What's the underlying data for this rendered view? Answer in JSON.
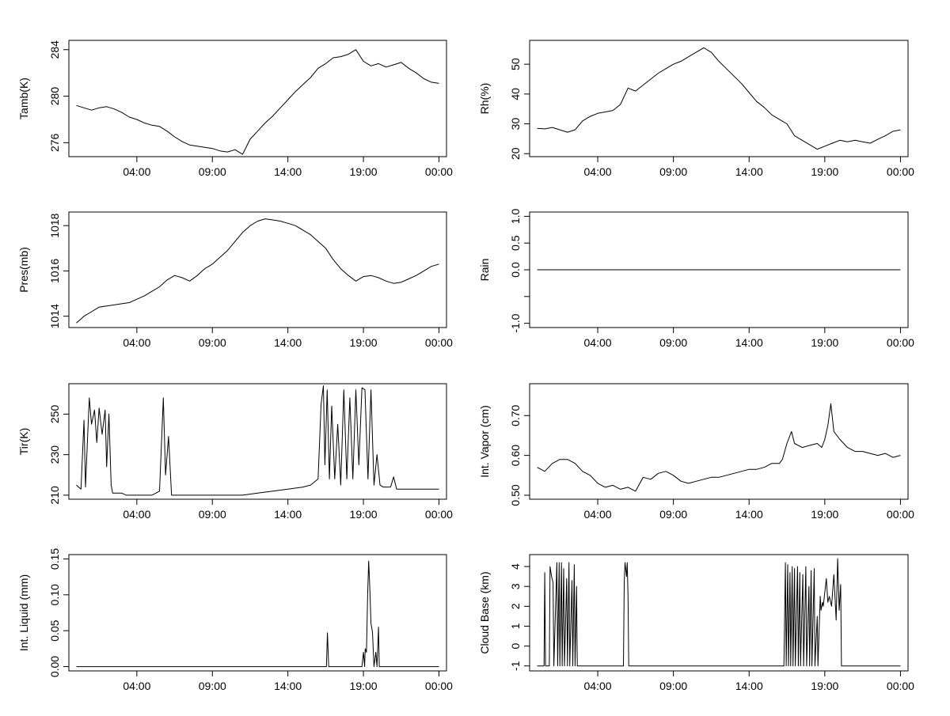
{
  "chart_data": [
    {
      "type": "line",
      "ylabel": "Tamb(K)",
      "xticks": [
        "04:00",
        "09:00",
        "14:00",
        "19:00",
        "00:00"
      ],
      "xlim": [
        -0.5,
        24.5
      ],
      "ylim": [
        274.8,
        284.8
      ],
      "yticks": [
        276,
        280,
        284
      ],
      "x": [
        0,
        0.5,
        1,
        1.5,
        2,
        2.5,
        3,
        3.5,
        4,
        4.5,
        5,
        5.5,
        6,
        6.5,
        7,
        7.5,
        8,
        8.5,
        9,
        9.5,
        10,
        10.5,
        11,
        11.5,
        12,
        12.5,
        13,
        13.5,
        14,
        14.5,
        15,
        15.5,
        16,
        16.5,
        17,
        17.5,
        18,
        18.5,
        19,
        19.5,
        20,
        20.5,
        21,
        21.5,
        22,
        22.5,
        23,
        23.5,
        24
      ],
      "y": [
        279.2,
        279.0,
        278.8,
        279.0,
        279.1,
        278.9,
        278.6,
        278.2,
        278.0,
        277.7,
        277.5,
        277.4,
        277.0,
        276.5,
        276.1,
        275.8,
        275.7,
        275.6,
        275.5,
        275.3,
        275.2,
        275.4,
        275.0,
        276.3,
        277.0,
        277.7,
        278.3,
        279.0,
        279.7,
        280.4,
        281.0,
        281.6,
        282.4,
        282.8,
        283.3,
        283.4,
        283.6,
        284.0,
        283.0,
        282.6,
        282.8,
        282.5,
        282.7,
        282.9,
        282.4,
        282.0,
        281.5,
        281.2,
        281.1
      ]
    },
    {
      "type": "line",
      "ylabel": "Rh(%)",
      "xticks": [
        "04:00",
        "09:00",
        "14:00",
        "19:00",
        "00:00"
      ],
      "xlim": [
        -0.5,
        24.5
      ],
      "ylim": [
        19,
        58
      ],
      "yticks": [
        20,
        30,
        40,
        50
      ],
      "x": [
        0,
        0.5,
        1,
        1.5,
        2,
        2.5,
        3,
        3.5,
        4,
        4.5,
        5,
        5.5,
        6,
        6.5,
        7,
        7.5,
        8,
        8.5,
        9,
        9.5,
        10,
        10.5,
        11,
        11.5,
        12,
        12.5,
        13,
        13.5,
        14,
        14.5,
        15,
        15.5,
        16,
        16.5,
        17,
        17.5,
        18,
        18.5,
        19,
        19.5,
        20,
        20.5,
        21,
        21.5,
        22,
        22.5,
        23,
        23.5,
        24
      ],
      "y": [
        28.5,
        28.3,
        28.8,
        28.0,
        27.2,
        28.0,
        31.0,
        32.5,
        33.5,
        34.0,
        34.5,
        36.5,
        42.0,
        41.0,
        43.0,
        45.0,
        47.0,
        48.5,
        50.0,
        51.0,
        52.5,
        54.0,
        55.5,
        54.0,
        51.0,
        48.5,
        46.0,
        43.5,
        40.5,
        37.5,
        35.5,
        33.0,
        31.5,
        30.0,
        26.0,
        24.5,
        23.0,
        21.5,
        22.5,
        23.5,
        24.5,
        24.0,
        24.5,
        24.0,
        23.5,
        24.8,
        26.0,
        27.5,
        28.0
      ]
    },
    {
      "type": "line",
      "ylabel": "Pres(mb)",
      "xticks": [
        "04:00",
        "09:00",
        "14:00",
        "19:00",
        "00:00"
      ],
      "xlim": [
        -0.5,
        24.5
      ],
      "ylim": [
        1013.5,
        1018.6
      ],
      "yticks": [
        1014,
        1016,
        1018
      ],
      "x": [
        0,
        0.5,
        1,
        1.5,
        2,
        2.5,
        3,
        3.5,
        4,
        4.5,
        5,
        5.5,
        6,
        6.5,
        7,
        7.5,
        8,
        8.5,
        9,
        9.5,
        10,
        10.5,
        11,
        11.5,
        12,
        12.5,
        13,
        13.5,
        14,
        14.5,
        15,
        15.5,
        16,
        16.5,
        17,
        17.5,
        18,
        18.5,
        19,
        19.5,
        20,
        20.5,
        21,
        21.5,
        22,
        22.5,
        23,
        23.5,
        24
      ],
      "y": [
        1013.7,
        1014.0,
        1014.2,
        1014.4,
        1014.45,
        1014.5,
        1014.55,
        1014.6,
        1014.75,
        1014.9,
        1015.1,
        1015.3,
        1015.6,
        1015.8,
        1015.7,
        1015.55,
        1015.8,
        1016.1,
        1016.3,
        1016.6,
        1016.9,
        1017.3,
        1017.7,
        1018.0,
        1018.2,
        1018.3,
        1018.25,
        1018.2,
        1018.1,
        1018.0,
        1017.8,
        1017.6,
        1017.3,
        1017.0,
        1016.5,
        1016.1,
        1015.8,
        1015.55,
        1015.75,
        1015.8,
        1015.7,
        1015.55,
        1015.45,
        1015.5,
        1015.65,
        1015.8,
        1016.0,
        1016.2,
        1016.3
      ]
    },
    {
      "type": "line",
      "ylabel": "Rain",
      "xticks": [
        "04:00",
        "09:00",
        "14:00",
        "19:00",
        "00:00"
      ],
      "xlim": [
        -0.5,
        24.5
      ],
      "ylim": [
        -1.08,
        1.08
      ],
      "yticks": [
        -1.0,
        -0.5,
        0.0,
        0.5,
        1.0
      ],
      "yticklabels": [
        "-1.0",
        "",
        "0.0",
        "0.5",
        "1.0"
      ],
      "x": [
        0,
        24
      ],
      "y": [
        0,
        0
      ]
    },
    {
      "type": "line",
      "ylabel": "Tir(K)",
      "xticks": [
        "04:00",
        "09:00",
        "14:00",
        "19:00",
        "00:00"
      ],
      "xlim": [
        -0.5,
        24.5
      ],
      "ylim": [
        208,
        265
      ],
      "yticks": [
        210,
        230,
        250
      ],
      "x": [
        0,
        0.3,
        0.5,
        0.6,
        0.75,
        0.85,
        1.0,
        1.2,
        1.35,
        1.5,
        1.7,
        1.9,
        2.0,
        2.15,
        2.3,
        2.4,
        2.55,
        2.7,
        2.85,
        3.0,
        3.3,
        4.0,
        5.0,
        5.5,
        5.75,
        5.9,
        6.1,
        6.3,
        6.5,
        8.0,
        9.0,
        10.0,
        11.0,
        12.0,
        13.0,
        14.0,
        15.0,
        15.5,
        16.0,
        16.2,
        16.35,
        16.45,
        16.6,
        16.75,
        16.9,
        17.1,
        17.3,
        17.5,
        17.7,
        17.9,
        18.1,
        18.3,
        18.5,
        18.7,
        18.9,
        19.1,
        19.3,
        19.5,
        19.7,
        19.9,
        20.1,
        20.3,
        20.5,
        20.8,
        21.0,
        21.2,
        21.5,
        22.0,
        23.0,
        24.0
      ],
      "y": [
        215,
        213,
        247,
        214,
        240,
        258,
        245,
        252,
        236,
        253,
        240,
        252,
        224,
        250,
        215,
        211,
        211,
        211,
        211,
        211,
        210,
        210,
        210,
        212,
        258,
        220,
        239,
        210,
        210,
        210,
        210,
        210,
        210,
        211,
        212,
        213,
        214,
        215,
        218,
        255,
        264,
        225,
        262,
        218,
        254,
        218,
        245,
        215,
        262,
        218,
        258,
        218,
        262,
        225,
        263,
        262,
        218,
        262,
        215,
        230,
        215,
        214,
        214,
        214,
        219,
        213,
        213,
        213,
        213,
        213
      ]
    },
    {
      "type": "line",
      "ylabel": "Int. Vapor (cm)",
      "xticks": [
        "04:00",
        "09:00",
        "14:00",
        "19:00",
        "00:00"
      ],
      "xlim": [
        -0.5,
        24.5
      ],
      "ylim": [
        0.49,
        0.78
      ],
      "yticks": [
        0.5,
        0.6,
        0.7
      ],
      "yticklabels": [
        "0.50",
        "0.60",
        "0.70"
      ],
      "x": [
        0,
        0.5,
        1,
        1.5,
        2,
        2.5,
        3,
        3.5,
        4,
        4.5,
        5,
        5.5,
        6,
        6.5,
        7,
        7.5,
        8,
        8.5,
        9,
        9.5,
        10,
        10.5,
        11,
        11.5,
        12,
        12.5,
        13,
        13.5,
        14,
        14.5,
        15,
        15.5,
        16,
        16.2,
        16.5,
        16.8,
        17,
        17.5,
        18,
        18.5,
        18.8,
        19.0,
        19.2,
        19.4,
        19.6,
        20,
        20.5,
        21,
        21.5,
        22,
        22.5,
        23,
        23.5,
        24
      ],
      "y": [
        0.57,
        0.56,
        0.58,
        0.59,
        0.59,
        0.58,
        0.56,
        0.55,
        0.53,
        0.52,
        0.525,
        0.515,
        0.52,
        0.51,
        0.545,
        0.54,
        0.555,
        0.56,
        0.55,
        0.535,
        0.53,
        0.535,
        0.54,
        0.545,
        0.545,
        0.55,
        0.555,
        0.56,
        0.565,
        0.565,
        0.57,
        0.58,
        0.58,
        0.59,
        0.63,
        0.66,
        0.63,
        0.62,
        0.625,
        0.63,
        0.62,
        0.64,
        0.675,
        0.73,
        0.66,
        0.64,
        0.62,
        0.61,
        0.61,
        0.605,
        0.6,
        0.605,
        0.595,
        0.6
      ]
    },
    {
      "type": "line",
      "ylabel": "Int. Liquid (mm)",
      "xticks": [
        "04:00",
        "09:00",
        "14:00",
        "19:00",
        "00:00"
      ],
      "xlim": [
        -0.5,
        24.5
      ],
      "ylim": [
        -0.006,
        0.156
      ],
      "yticks": [
        0.0,
        0.05,
        0.1,
        0.15
      ],
      "yticklabels": [
        "0.00",
        "0.05",
        "0.10",
        "0.15"
      ],
      "x": [
        0,
        16.0,
        16.55,
        16.62,
        16.7,
        18.9,
        19.0,
        19.08,
        19.12,
        19.2,
        19.28,
        19.35,
        19.42,
        19.5,
        19.6,
        19.7,
        19.82,
        19.9,
        20.0,
        20.05,
        20.15,
        20.2,
        24
      ],
      "y": [
        0,
        0,
        0,
        0.047,
        0,
        0,
        0.02,
        0,
        0.025,
        0.02,
        0.1,
        0.147,
        0.11,
        0.06,
        0.048,
        0,
        0.02,
        0,
        0.055,
        0,
        0,
        0,
        0
      ]
    },
    {
      "type": "line",
      "ylabel": "Cloud Base (km)",
      "xticks": [
        "04:00",
        "09:00",
        "14:00",
        "19:00",
        "00:00"
      ],
      "xlim": [
        -0.5,
        24.5
      ],
      "ylim": [
        -1.25,
        4.6
      ],
      "yticks": [
        -1,
        0,
        1,
        2,
        3,
        4
      ],
      "x": [
        0,
        0.3,
        0.45,
        0.5,
        0.55,
        0.8,
        0.85,
        0.95,
        1.05,
        1.1,
        1.3,
        1.35,
        1.45,
        1.5,
        1.6,
        1.65,
        1.75,
        1.8,
        1.95,
        2.0,
        2.1,
        2.15,
        2.3,
        2.35,
        2.45,
        2.5,
        2.6,
        2.65,
        2.8,
        5.7,
        5.75,
        5.8,
        5.9,
        5.95,
        6.0,
        6.05,
        6.1,
        16.3,
        16.4,
        16.45,
        16.55,
        16.6,
        16.7,
        16.75,
        16.85,
        16.9,
        17.0,
        17.05,
        17.2,
        17.25,
        17.35,
        17.4,
        17.55,
        17.6,
        17.75,
        17.8,
        17.95,
        18.0,
        18.1,
        18.15,
        18.3,
        18.35,
        18.5,
        18.55,
        18.7,
        18.75,
        18.85,
        18.9,
        19.1,
        19.2,
        19.3,
        19.45,
        19.6,
        19.75,
        19.85,
        19.95,
        20.05,
        20.1,
        20.15,
        24
      ],
      "y": [
        -1,
        -1,
        -1,
        3.7,
        -1,
        -1,
        4.0,
        3.5,
        3.2,
        -1,
        4.2,
        -1,
        4.2,
        -1,
        4.2,
        -1,
        3.9,
        -1,
        3.4,
        -1,
        4.2,
        -1,
        3.3,
        -1,
        4.1,
        -1,
        3.0,
        -1,
        -1,
        -1,
        3.2,
        4.2,
        3.5,
        4.2,
        2.5,
        -1,
        -1,
        -1,
        4.2,
        -1,
        4.1,
        -1,
        3.7,
        -1,
        4.0,
        -1,
        3.9,
        -1,
        4.0,
        -1,
        3.7,
        -1,
        3.6,
        -1,
        4.0,
        -1,
        3.0,
        -1,
        3.8,
        -1,
        3.9,
        -1,
        1.5,
        -1,
        2.5,
        1.8,
        2.2,
        2.0,
        3.4,
        2.2,
        2.5,
        2.0,
        3.6,
        1.3,
        4.4,
        1.8,
        3.1,
        -1,
        -1,
        -1
      ]
    }
  ]
}
